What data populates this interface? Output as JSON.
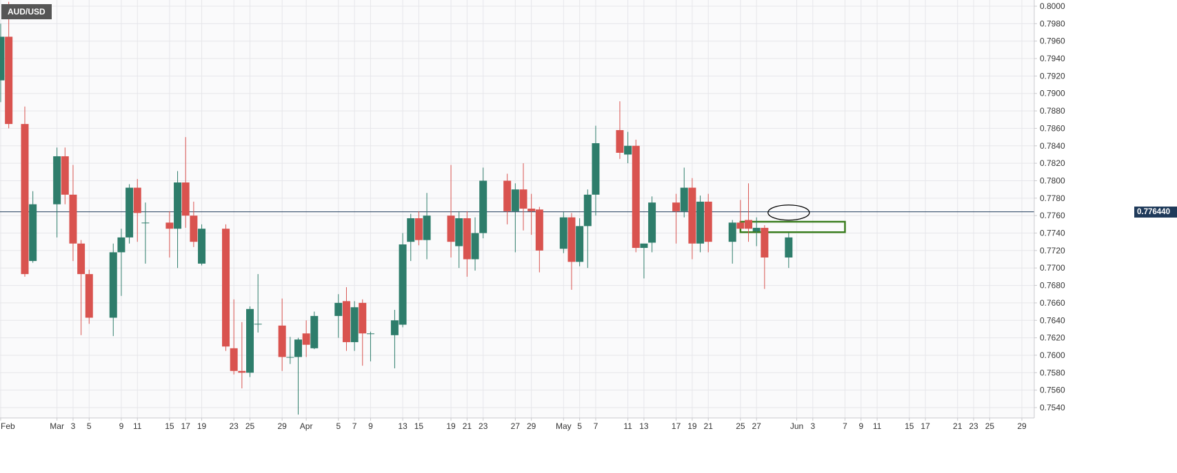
{
  "chart_data": {
    "type": "candlestick",
    "symbol": "AUD/USD",
    "current_price_label": "0.776440",
    "current_price": 0.77644,
    "y_range": [
      0.753,
      0.8005
    ],
    "y_ticks": [
      "0.7540",
      "0.7560",
      "0.7580",
      "0.7600",
      "0.7620",
      "0.7640",
      "0.7660",
      "0.7680",
      "0.7700",
      "0.7720",
      "0.7740",
      "0.7760",
      "0.7780",
      "0.7800",
      "0.7820",
      "0.7840",
      "0.7860",
      "0.7880",
      "0.7900",
      "0.7920",
      "0.7940",
      "0.7960",
      "0.7980",
      "0.8000"
    ],
    "x_ticks": [
      {
        "label": "Feb",
        "date": "2021-02-22"
      },
      {
        "label": "Mar",
        "date": "2021-03-01"
      },
      {
        "label": "3",
        "date": "2021-03-03"
      },
      {
        "label": "5",
        "date": "2021-03-05"
      },
      {
        "label": "9",
        "date": "2021-03-09"
      },
      {
        "label": "11",
        "date": "2021-03-11"
      },
      {
        "label": "15",
        "date": "2021-03-15"
      },
      {
        "label": "17",
        "date": "2021-03-17"
      },
      {
        "label": "19",
        "date": "2021-03-19"
      },
      {
        "label": "23",
        "date": "2021-03-23"
      },
      {
        "label": "25",
        "date": "2021-03-25"
      },
      {
        "label": "29",
        "date": "2021-03-29"
      },
      {
        "label": "Apr",
        "date": "2021-04-01"
      },
      {
        "label": "5",
        "date": "2021-04-05"
      },
      {
        "label": "7",
        "date": "2021-04-07"
      },
      {
        "label": "9",
        "date": "2021-04-09"
      },
      {
        "label": "13",
        "date": "2021-04-13"
      },
      {
        "label": "15",
        "date": "2021-04-15"
      },
      {
        "label": "19",
        "date": "2021-04-19"
      },
      {
        "label": "21",
        "date": "2021-04-21"
      },
      {
        "label": "23",
        "date": "2021-04-23"
      },
      {
        "label": "27",
        "date": "2021-04-27"
      },
      {
        "label": "29",
        "date": "2021-04-29"
      },
      {
        "label": "May",
        "date": "2021-05-03"
      },
      {
        "label": "5",
        "date": "2021-05-05"
      },
      {
        "label": "7",
        "date": "2021-05-07"
      },
      {
        "label": "11",
        "date": "2021-05-11"
      },
      {
        "label": "13",
        "date": "2021-05-13"
      },
      {
        "label": "17",
        "date": "2021-05-17"
      },
      {
        "label": "19",
        "date": "2021-05-19"
      },
      {
        "label": "21",
        "date": "2021-05-21"
      },
      {
        "label": "25",
        "date": "2021-05-25"
      },
      {
        "label": "27",
        "date": "2021-05-27"
      },
      {
        "label": "Jun",
        "date": "2021-06-01"
      },
      {
        "label": "3",
        "date": "2021-06-03"
      },
      {
        "label": "7",
        "date": "2021-06-07"
      },
      {
        "label": "9",
        "date": "2021-06-09"
      },
      {
        "label": "11",
        "date": "2021-06-11"
      },
      {
        "label": "15",
        "date": "2021-06-15"
      },
      {
        "label": "17",
        "date": "2021-06-17"
      },
      {
        "label": "21",
        "date": "2021-06-21"
      },
      {
        "label": "23",
        "date": "2021-06-23"
      },
      {
        "label": "25",
        "date": "2021-06-25"
      },
      {
        "label": "29",
        "date": "2021-06-29"
      }
    ],
    "candles": [
      {
        "date": "2021-02-22",
        "open": 0.7915,
        "high": 0.798,
        "low": 0.789,
        "close": 0.7965
      },
      {
        "date": "2021-02-23",
        "open": 0.7965,
        "high": 0.8005,
        "low": 0.786,
        "close": 0.7865
      },
      {
        "date": "2021-02-25",
        "open": 0.7865,
        "high": 0.7885,
        "low": 0.769,
        "close": 0.7693
      },
      {
        "date": "2021-02-26",
        "open": 0.7708,
        "high": 0.7788,
        "low": 0.7706,
        "close": 0.7773
      },
      {
        "date": "2021-03-01",
        "open": 0.7773,
        "high": 0.7838,
        "low": 0.7735,
        "close": 0.7828
      },
      {
        "date": "2021-03-02",
        "open": 0.7828,
        "high": 0.7838,
        "low": 0.7773,
        "close": 0.7784
      },
      {
        "date": "2021-03-03",
        "open": 0.7784,
        "high": 0.7818,
        "low": 0.7708,
        "close": 0.7728
      },
      {
        "date": "2021-03-04",
        "open": 0.7728,
        "high": 0.7732,
        "low": 0.7623,
        "close": 0.7693
      },
      {
        "date": "2021-03-05",
        "open": 0.7693,
        "high": 0.7698,
        "low": 0.7636,
        "close": 0.7643
      },
      {
        "date": "2021-03-08",
        "open": 0.7643,
        "high": 0.7728,
        "low": 0.7622,
        "close": 0.7718
      },
      {
        "date": "2021-03-09",
        "open": 0.7718,
        "high": 0.7745,
        "low": 0.7668,
        "close": 0.7735
      },
      {
        "date": "2021-03-10",
        "open": 0.7735,
        "high": 0.7796,
        "low": 0.7728,
        "close": 0.7792
      },
      {
        "date": "2021-03-11",
        "open": 0.7792,
        "high": 0.7802,
        "low": 0.773,
        "close": 0.7763
      },
      {
        "date": "2021-03-12",
        "open": 0.7752,
        "high": 0.7775,
        "low": 0.7705,
        "close": 0.7752
      },
      {
        "date": "2021-03-15",
        "open": 0.7752,
        "high": 0.7765,
        "low": 0.7712,
        "close": 0.7745
      },
      {
        "date": "2021-03-16",
        "open": 0.7745,
        "high": 0.7811,
        "low": 0.77,
        "close": 0.7798
      },
      {
        "date": "2021-03-17",
        "open": 0.7798,
        "high": 0.785,
        "low": 0.7746,
        "close": 0.776
      },
      {
        "date": "2021-03-18",
        "open": 0.776,
        "high": 0.7776,
        "low": 0.7724,
        "close": 0.773
      },
      {
        "date": "2021-03-19",
        "open": 0.7705,
        "high": 0.775,
        "low": 0.7703,
        "close": 0.7745
      },
      {
        "date": "2021-03-22",
        "open": 0.7745,
        "high": 0.775,
        "low": 0.7605,
        "close": 0.761
      },
      {
        "date": "2021-03-23",
        "open": 0.7608,
        "high": 0.7664,
        "low": 0.7578,
        "close": 0.7582
      },
      {
        "date": "2021-03-24",
        "open": 0.7582,
        "high": 0.7638,
        "low": 0.7562,
        "close": 0.758
      },
      {
        "date": "2021-03-25",
        "open": 0.758,
        "high": 0.7656,
        "low": 0.7575,
        "close": 0.7653
      },
      {
        "date": "2021-03-26",
        "open": 0.7636,
        "high": 0.7693,
        "low": 0.7626,
        "close": 0.7636
      },
      {
        "date": "2021-03-29",
        "open": 0.7634,
        "high": 0.7665,
        "low": 0.7582,
        "close": 0.7598
      },
      {
        "date": "2021-03-30",
        "open": 0.7598,
        "high": 0.7621,
        "low": 0.759,
        "close": 0.7598
      },
      {
        "date": "2021-03-31",
        "open": 0.7598,
        "high": 0.762,
        "low": 0.7532,
        "close": 0.7618
      },
      {
        "date": "2021-04-01",
        "open": 0.7625,
        "high": 0.764,
        "low": 0.7598,
        "close": 0.7612
      },
      {
        "date": "2021-04-02",
        "open": 0.7608,
        "high": 0.765,
        "low": 0.7607,
        "close": 0.7645
      },
      {
        "date": "2021-04-05",
        "open": 0.7645,
        "high": 0.767,
        "low": 0.762,
        "close": 0.766
      },
      {
        "date": "2021-04-06",
        "open": 0.7662,
        "high": 0.7678,
        "low": 0.7605,
        "close": 0.7615
      },
      {
        "date": "2021-04-07",
        "open": 0.7615,
        "high": 0.7662,
        "low": 0.7605,
        "close": 0.7655
      },
      {
        "date": "2021-04-08",
        "open": 0.766,
        "high": 0.7664,
        "low": 0.7588,
        "close": 0.7625
      },
      {
        "date": "2021-04-09",
        "open": 0.7625,
        "high": 0.7627,
        "low": 0.7593,
        "close": 0.7625
      },
      {
        "date": "2021-04-12",
        "open": 0.7623,
        "high": 0.7652,
        "low": 0.7585,
        "close": 0.764
      },
      {
        "date": "2021-04-13",
        "open": 0.7635,
        "high": 0.774,
        "low": 0.7632,
        "close": 0.7727
      },
      {
        "date": "2021-04-14",
        "open": 0.773,
        "high": 0.7762,
        "low": 0.7708,
        "close": 0.7757
      },
      {
        "date": "2021-04-15",
        "open": 0.7757,
        "high": 0.7765,
        "low": 0.7726,
        "close": 0.7732
      },
      {
        "date": "2021-04-16",
        "open": 0.7732,
        "high": 0.7786,
        "low": 0.771,
        "close": 0.776
      },
      {
        "date": "2021-04-19",
        "open": 0.776,
        "high": 0.7818,
        "low": 0.7712,
        "close": 0.773
      },
      {
        "date": "2021-04-20",
        "open": 0.7725,
        "high": 0.7765,
        "low": 0.77,
        "close": 0.7757
      },
      {
        "date": "2021-04-21",
        "open": 0.7757,
        "high": 0.7765,
        "low": 0.769,
        "close": 0.771
      },
      {
        "date": "2021-04-22",
        "open": 0.771,
        "high": 0.7758,
        "low": 0.7697,
        "close": 0.774
      },
      {
        "date": "2021-04-23",
        "open": 0.774,
        "high": 0.7815,
        "low": 0.7734,
        "close": 0.78
      },
      {
        "date": "2021-04-26",
        "open": 0.78,
        "high": 0.7808,
        "low": 0.775,
        "close": 0.7765
      },
      {
        "date": "2021-04-27",
        "open": 0.7765,
        "high": 0.7797,
        "low": 0.7718,
        "close": 0.779
      },
      {
        "date": "2021-04-28",
        "open": 0.779,
        "high": 0.782,
        "low": 0.7743,
        "close": 0.7768
      },
      {
        "date": "2021-04-29",
        "open": 0.7768,
        "high": 0.7785,
        "low": 0.7738,
        "close": 0.7765
      },
      {
        "date": "2021-04-30",
        "open": 0.7767,
        "high": 0.777,
        "low": 0.7695,
        "close": 0.772
      },
      {
        "date": "2021-05-03",
        "open": 0.7722,
        "high": 0.7764,
        "low": 0.7717,
        "close": 0.7758
      },
      {
        "date": "2021-05-04",
        "open": 0.7758,
        "high": 0.7763,
        "low": 0.7675,
        "close": 0.7707
      },
      {
        "date": "2021-05-05",
        "open": 0.7707,
        "high": 0.7757,
        "low": 0.7702,
        "close": 0.7748
      },
      {
        "date": "2021-05-06",
        "open": 0.7748,
        "high": 0.779,
        "low": 0.77,
        "close": 0.7784
      },
      {
        "date": "2021-05-07",
        "open": 0.7784,
        "high": 0.7863,
        "low": 0.776,
        "close": 0.7843
      },
      {
        "date": "2021-05-10",
        "open": 0.7858,
        "high": 0.7891,
        "low": 0.7825,
        "close": 0.7832
      },
      {
        "date": "2021-05-11",
        "open": 0.783,
        "high": 0.7856,
        "low": 0.782,
        "close": 0.784
      },
      {
        "date": "2021-05-12",
        "open": 0.784,
        "high": 0.7847,
        "low": 0.7718,
        "close": 0.7723
      },
      {
        "date": "2021-05-13",
        "open": 0.7723,
        "high": 0.7727,
        "low": 0.7688,
        "close": 0.7728
      },
      {
        "date": "2021-05-14",
        "open": 0.7729,
        "high": 0.7782,
        "low": 0.7718,
        "close": 0.7775
      },
      {
        "date": "2021-05-17",
        "open": 0.7775,
        "high": 0.7785,
        "low": 0.7728,
        "close": 0.7765
      },
      {
        "date": "2021-05-18",
        "open": 0.7765,
        "high": 0.7815,
        "low": 0.7758,
        "close": 0.7792
      },
      {
        "date": "2021-05-19",
        "open": 0.7792,
        "high": 0.7803,
        "low": 0.771,
        "close": 0.7728
      },
      {
        "date": "2021-05-20",
        "open": 0.7728,
        "high": 0.7783,
        "low": 0.7718,
        "close": 0.7776
      },
      {
        "date": "2021-05-21",
        "open": 0.7776,
        "high": 0.7785,
        "low": 0.7718,
        "close": 0.773
      },
      {
        "date": "2021-05-24",
        "open": 0.773,
        "high": 0.7755,
        "low": 0.7705,
        "close": 0.7752
      },
      {
        "date": "2021-05-25",
        "open": 0.7752,
        "high": 0.7778,
        "low": 0.7745,
        "close": 0.7745
      },
      {
        "date": "2021-05-26",
        "open": 0.7755,
        "high": 0.7797,
        "low": 0.773,
        "close": 0.7745
      },
      {
        "date": "2021-05-27",
        "open": 0.7742,
        "high": 0.7758,
        "low": 0.7725,
        "close": 0.7746
      },
      {
        "date": "2021-05-28",
        "open": 0.7746,
        "high": 0.7749,
        "low": 0.7676,
        "close": 0.7712
      },
      {
        "date": "2021-05-31",
        "open": 0.7712,
        "high": 0.774,
        "low": 0.77,
        "close": 0.7735
      }
    ],
    "annotations": [
      {
        "type": "rectangle",
        "color": "#3a7d1e",
        "x_start": "2021-05-25",
        "x_end": "2021-06-07",
        "y_low": 0.7741,
        "y_high": 0.7753
      },
      {
        "type": "ellipse",
        "color": "#000000",
        "x_center": "2021-05-31",
        "y_center": 0.77635
      }
    ],
    "grid": true,
    "colors": {
      "up": "#2e7d6b",
      "down": "#d9534f",
      "price_line": "#1f3a5a",
      "price_tag_bg": "#1f3a5a",
      "badge_bg": "#555555",
      "grid": "#e6e6ea",
      "axis": "#c8c8cc"
    }
  }
}
